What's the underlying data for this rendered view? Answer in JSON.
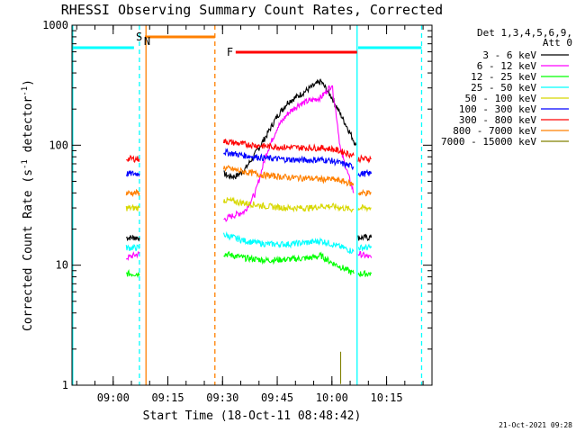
{
  "chart_data": {
    "type": "line",
    "title": "RHESSI Observing Summary Count Rates, Corrected",
    "xlabel": "Start Time (18-Oct-11 08:48:42)",
    "ylabel_main": "Corrected Count Rate (s",
    "ylabel_sup1": "-1",
    "ylabel_mid": " detector",
    "ylabel_sup2": "-1",
    "ylabel_end": ")",
    "y_scale": "log",
    "ylim": [
      1,
      1000
    ],
    "y_ticks": [
      {
        "value": 1,
        "label": "1"
      },
      {
        "value": 10,
        "label": "10"
      },
      {
        "value": 100,
        "label": "100"
      },
      {
        "value": 1000,
        "label": "1000"
      }
    ],
    "x_ticks_minutes": [
      9.0,
      9.25,
      9.5,
      9.75,
      10.0,
      10.25
    ],
    "x_tick_labels": [
      "09:00",
      "09:15",
      "09:30",
      "09:45",
      "10:00",
      "10:15"
    ],
    "xlim_hours": [
      8.8117,
      10.4575
    ],
    "legend_header": [
      "Det 1,3,4,5,6,9,",
      "Att 0"
    ],
    "legend_position": "right",
    "flags": [
      {
        "label": "S",
        "color": "#ff8000",
        "start": 9.145,
        "end": 9.465
      },
      {
        "label": "F",
        "color": "#ff0000",
        "start": 9.56,
        "end": 10.115
      }
    ],
    "night_markers": [
      {
        "label": "N",
        "color": "#00ffff",
        "solid": 10.12,
        "dashed": 9.12
      }
    ],
    "cyan_level_bars": [
      {
        "start": 8.815,
        "end": 9.095,
        "value": 650
      },
      {
        "start": 10.12,
        "end": 10.41,
        "value": 650
      }
    ],
    "vertical_lines": [
      {
        "x": 8.815,
        "color": "#00ffff",
        "style": "solid"
      },
      {
        "x": 9.12,
        "color": "#00ffff",
        "style": "dashed"
      },
      {
        "x": 9.15,
        "color": "#ff8000",
        "style": "solid"
      },
      {
        "x": 9.465,
        "color": "#ff8000",
        "style": "dashed"
      },
      {
        "x": 10.115,
        "color": "#00ffff",
        "style": "solid"
      },
      {
        "x": 10.41,
        "color": "#00ffff",
        "style": "dashed"
      }
    ],
    "series": [
      {
        "name": "3 - 6 keV",
        "color": "#000000",
        "segments": [
          {
            "x": [
              9.06,
              9.12
            ],
            "y": [
              17,
              17
            ]
          },
          {
            "x": [
              9.505,
              9.53,
              9.56,
              9.6,
              9.65,
              9.7,
              9.75,
              9.8,
              9.85,
              9.9,
              9.95,
              10.0,
              10.04,
              10.08,
              10.11
            ],
            "y": [
              58,
              55,
              55,
              62,
              85,
              120,
              175,
              230,
              260,
              300,
              340,
              250,
              180,
              130,
              100
            ]
          },
          {
            "x": [
              10.12,
              10.18
            ],
            "y": [
              17,
              17
            ]
          }
        ]
      },
      {
        "name": "6 - 12 keV",
        "color": "#ff00ff",
        "segments": [
          {
            "x": [
              9.06,
              9.12
            ],
            "y": [
              11.5,
              12.5
            ]
          },
          {
            "x": [
              9.505,
              9.55,
              9.6,
              9.65,
              9.7,
              9.75,
              9.8,
              9.85,
              9.9,
              9.95,
              10.0,
              10.02,
              10.04,
              10.07,
              10.1
            ],
            "y": [
              24,
              26,
              28,
              40,
              85,
              140,
              185,
              220,
              235,
              250,
              320,
              180,
              90,
              60,
              40
            ]
          },
          {
            "x": [
              10.12,
              10.18
            ],
            "y": [
              12.5,
              11.5
            ]
          }
        ]
      },
      {
        "name": "12 - 25 keV",
        "color": "#00ff00",
        "segments": [
          {
            "x": [
              9.06,
              9.12
            ],
            "y": [
              8.5,
              8.5
            ]
          },
          {
            "x": [
              9.505,
              9.6,
              9.7,
              9.8,
              9.9,
              9.95,
              10.0,
              10.05,
              10.1
            ],
            "y": [
              12.5,
              11.5,
              11.0,
              11.2,
              11.5,
              12.0,
              10.5,
              9.5,
              8.5
            ]
          },
          {
            "x": [
              10.12,
              10.18
            ],
            "y": [
              8.5,
              8.5
            ]
          }
        ]
      },
      {
        "name": "25 - 50 keV",
        "color": "#00ffff",
        "segments": [
          {
            "x": [
              9.06,
              9.12
            ],
            "y": [
              14,
              14
            ]
          },
          {
            "x": [
              9.505,
              9.6,
              9.7,
              9.8,
              9.9,
              9.95,
              10.0,
              10.05,
              10.1
            ],
            "y": [
              18,
              16,
              15,
              15,
              15.5,
              16,
              15,
              14,
              13
            ]
          },
          {
            "x": [
              10.12,
              10.18
            ],
            "y": [
              14,
              14
            ]
          }
        ]
      },
      {
        "name": "50 - 100 keV",
        "color": "#d8d800",
        "segments": [
          {
            "x": [
              9.06,
              9.12
            ],
            "y": [
              30,
              30
            ]
          },
          {
            "x": [
              9.505,
              9.6,
              9.7,
              9.8,
              9.9,
              9.95,
              10.0,
              10.05,
              10.1
            ],
            "y": [
              35,
              33,
              31,
              30,
              30,
              31,
              31,
              30,
              29
            ]
          },
          {
            "x": [
              10.12,
              10.18
            ],
            "y": [
              30,
              30
            ]
          }
        ]
      },
      {
        "name": "100 - 300 keV",
        "color": "#0000ff",
        "segments": [
          {
            "x": [
              9.06,
              9.12
            ],
            "y": [
              58,
              58
            ]
          },
          {
            "x": [
              9.505,
              9.6,
              9.7,
              9.8,
              9.9,
              9.95,
              10.0,
              10.05,
              10.1
            ],
            "y": [
              88,
              82,
              78,
              76,
              75,
              76,
              74,
              70,
              66
            ]
          },
          {
            "x": [
              10.12,
              10.18
            ],
            "y": [
              58,
              58
            ]
          }
        ]
      },
      {
        "name": "300 - 800 keV",
        "color": "#ff0000",
        "segments": [
          {
            "x": [
              9.06,
              9.12
            ],
            "y": [
              77,
              77
            ]
          },
          {
            "x": [
              9.505,
              9.6,
              9.7,
              9.8,
              9.9,
              9.95,
              10.0,
              10.05,
              10.1
            ],
            "y": [
              108,
              102,
              98,
              96,
              95,
              95,
              93,
              88,
              82
            ]
          },
          {
            "x": [
              10.12,
              10.18
            ],
            "y": [
              77,
              77
            ]
          }
        ]
      },
      {
        "name": "800 - 7000 keV",
        "color": "#ff8000",
        "segments": [
          {
            "x": [
              9.06,
              9.12
            ],
            "y": [
              40,
              40
            ]
          },
          {
            "x": [
              9.505,
              9.6,
              9.7,
              9.8,
              9.9,
              9.95,
              10.0,
              10.05,
              10.1
            ],
            "y": [
              65,
              60,
              56,
              54,
              53,
              52,
              52,
              50,
              47
            ]
          },
          {
            "x": [
              10.12,
              10.18
            ],
            "y": [
              40,
              40
            ]
          }
        ]
      },
      {
        "name": "7000 - 15000 keV",
        "color": "#808000",
        "segments": [
          {
            "x": [
              10.04,
              10.04
            ],
            "y": [
              1,
              1.9
            ]
          }
        ]
      }
    ],
    "footer_stamp": "21-Oct-2021 09:28"
  }
}
